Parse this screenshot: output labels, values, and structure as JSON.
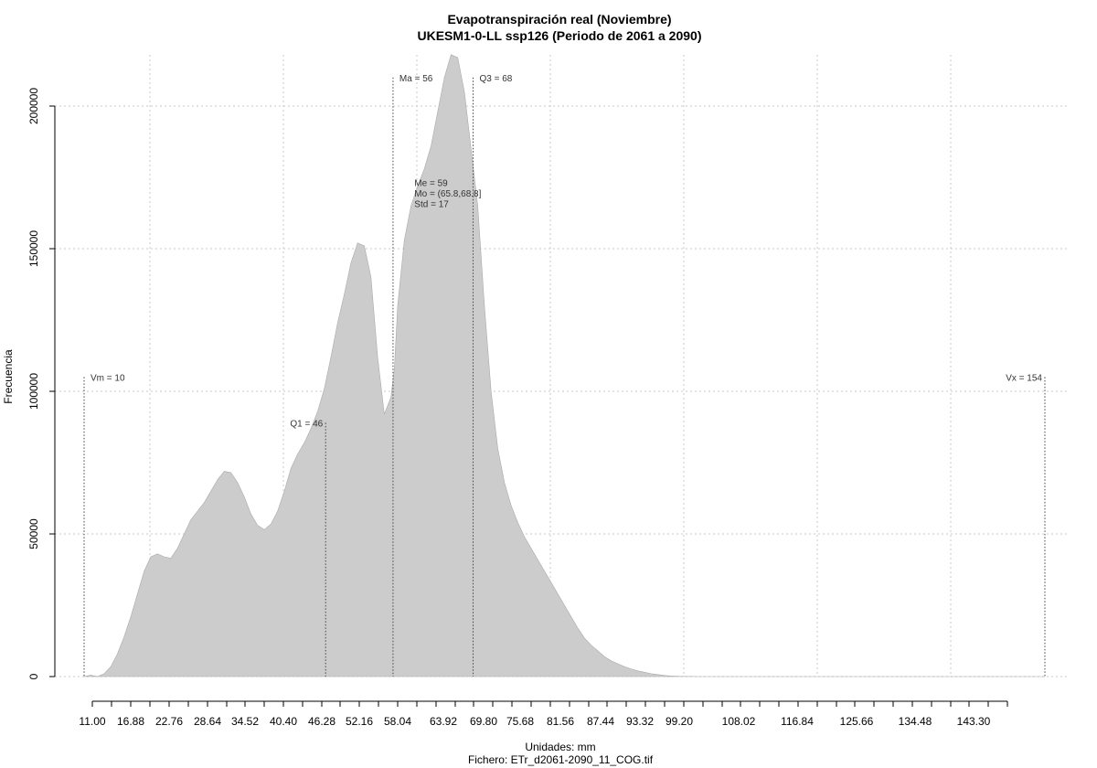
{
  "chart_data": {
    "type": "area",
    "title": "Evapotranspiración real (Noviembre)",
    "subtitle": "UKESM1-0-LL ssp126 (Periodo de 2061 a 2090)",
    "xlabel": "Unidades: mm",
    "ylabel": "Frecuencia",
    "footer": "Fichero: ETr_d2061-2090_11_COG.tif",
    "xlim": [
      10,
      154
    ],
    "ylim": [
      0,
      200000
    ],
    "grid": true,
    "fill_color": "#cccccc",
    "x_tick_labels": [
      "11.00",
      "16.88",
      "22.76",
      "28.64",
      "34.52",
      "40.40",
      "46.28",
      "52.16",
      "58.04",
      "63.92",
      "69.80",
      "75.68",
      "81.56",
      "87.44",
      "93.32",
      "99.20",
      "108.02",
      "116.84",
      "125.66",
      "134.48",
      "143.30"
    ],
    "y_tick_labels": [
      "0",
      "50000",
      "100000",
      "150000",
      "200000"
    ],
    "y_ticks": [
      0,
      50000,
      100000,
      150000,
      200000
    ],
    "series": [
      {
        "x": [
          10,
          11,
          12,
          13,
          14,
          15,
          16,
          17,
          18,
          19,
          20,
          21,
          22,
          23,
          24,
          25,
          26,
          27,
          28,
          29,
          30,
          31,
          32,
          33,
          34,
          35,
          36,
          37,
          38,
          39,
          40,
          41,
          42,
          43,
          44,
          45,
          46,
          47,
          48,
          49,
          50,
          51,
          52,
          53,
          54,
          55,
          56,
          56.5,
          57,
          58,
          59,
          60,
          61,
          62,
          63,
          64,
          65,
          66,
          67,
          68,
          69,
          70,
          71,
          72,
          73,
          74,
          75,
          76,
          77,
          78,
          79,
          80,
          81,
          82,
          83,
          84,
          85,
          86,
          87,
          88,
          89,
          90,
          91,
          92,
          93,
          94,
          95,
          96,
          97,
          98,
          99,
          100,
          101,
          102,
          103,
          105,
          108,
          110,
          115,
          120,
          125,
          130,
          135,
          140,
          145,
          150,
          154
        ],
        "y": [
          0,
          500,
          0,
          1000,
          3500,
          8000,
          14000,
          21000,
          29000,
          37000,
          42000,
          43000,
          42000,
          41500,
          45000,
          50000,
          55000,
          58000,
          61000,
          65000,
          69000,
          72000,
          71500,
          68000,
          63000,
          57000,
          53000,
          51500,
          53500,
          58000,
          65000,
          73000,
          78000,
          82000,
          87000,
          93000,
          101000,
          112000,
          124000,
          134000,
          145000,
          152000,
          151000,
          140000,
          112000,
          92000,
          98000,
          108000,
          130000,
          153000,
          165000,
          172000,
          178000,
          186000,
          198000,
          210000,
          218000,
          217000,
          205000,
          185000,
          165000,
          130000,
          100000,
          80000,
          68000,
          60000,
          54000,
          49000,
          45000,
          41000,
          37000,
          33000,
          29000,
          25000,
          21000,
          17000,
          13500,
          11000,
          9000,
          7000,
          5500,
          4500,
          3500,
          2700,
          2000,
          1500,
          1000,
          700,
          400,
          200,
          100,
          50,
          20,
          10,
          0,
          0,
          0,
          0,
          0,
          0,
          0,
          0,
          0,
          0,
          0,
          0,
          0
        ]
      }
    ],
    "annotations": [
      {
        "label": "Vm = 10",
        "x": 10,
        "line_top": 105000,
        "text_pos": "right"
      },
      {
        "label": "Q1 = 46",
        "x": 46.2,
        "line_top": 89000,
        "text_pos": "left"
      },
      {
        "label": "Ma = 56",
        "x": 56.3,
        "line_top": 210000,
        "text_pos": "right"
      },
      {
        "label": "Q3 = 68",
        "x": 68.3,
        "line_top": 210000,
        "text_pos": "right"
      },
      {
        "label": "Vx = 154",
        "x": 154,
        "line_top": 105000,
        "text_pos": "left"
      }
    ],
    "stats_lines": [
      "Me = 59",
      "Mo = (65.8,68.8]",
      "Std = 17"
    ],
    "stats_anchor_x": 59.5,
    "stats_anchor_y": 172000
  }
}
